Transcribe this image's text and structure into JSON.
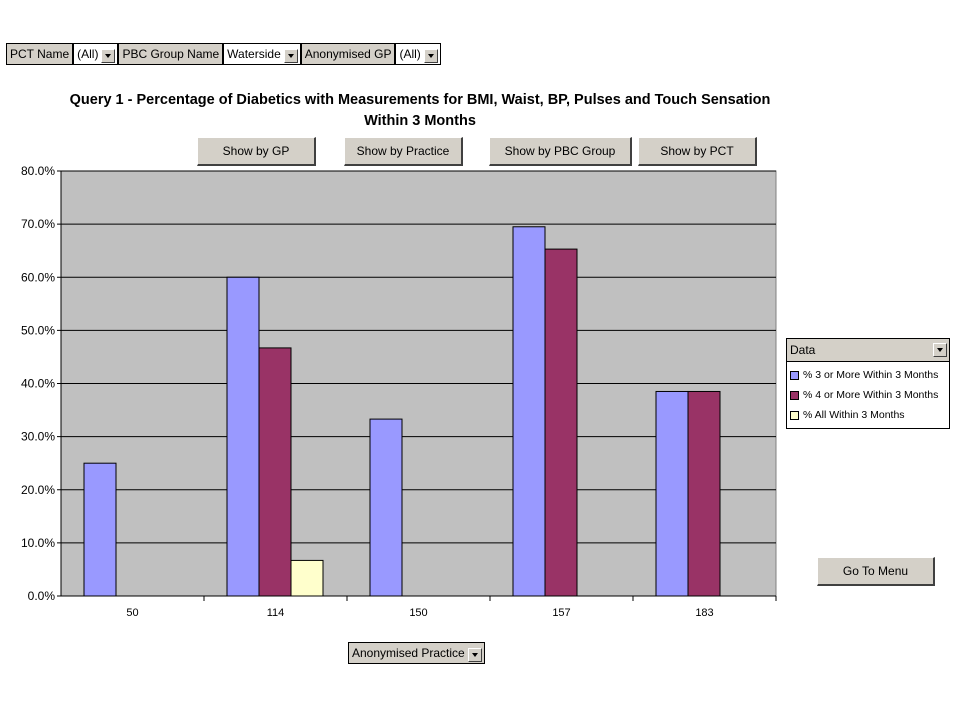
{
  "filters": [
    {
      "label": "PCT Name",
      "value": "(All)"
    },
    {
      "label": "PBC Group Name",
      "value": "Waterside"
    },
    {
      "label": "Anonymised GP",
      "value": "(All)"
    }
  ],
  "buttons": {
    "by_gp": "Show by GP",
    "by_practice": "Show by Practice",
    "by_pbc": "Show by PBC Group",
    "by_pct": "Show by PCT",
    "menu": "Go To Menu"
  },
  "legend_title": "Data",
  "axis_field": "Anonymised Practice",
  "colors": {
    "plot_background": "#c0c0c0",
    "series": [
      "#9999ff",
      "#993366",
      "#ffffcc"
    ]
  },
  "chart_data": {
    "type": "bar",
    "title": "Query 1 - Percentage of Diabetics with Measurements for BMI, Waist, BP, Pulses and Touch Sensation",
    "subtitle": "Within 3 Months",
    "xlabel": "Anonymised Practice",
    "ylabel": "",
    "categories": [
      "50",
      "114",
      "150",
      "157",
      "183"
    ],
    "series": [
      {
        "name": "% 3 or More Within 3 Months",
        "values": [
          25.0,
          60.0,
          33.3,
          69.5,
          38.5
        ]
      },
      {
        "name": "% 4 or More Within 3 Months",
        "values": [
          0,
          46.7,
          0,
          65.3,
          38.5
        ]
      },
      {
        "name": "% All Within 3 Months",
        "values": [
          0,
          6.7,
          0,
          0,
          0
        ]
      }
    ],
    "ylim": [
      0,
      80
    ],
    "yticks": [
      "0.0%",
      "10.0%",
      "20.0%",
      "30.0%",
      "40.0%",
      "50.0%",
      "60.0%",
      "70.0%",
      "80.0%"
    ],
    "grid": true,
    "legend_position": "right"
  }
}
